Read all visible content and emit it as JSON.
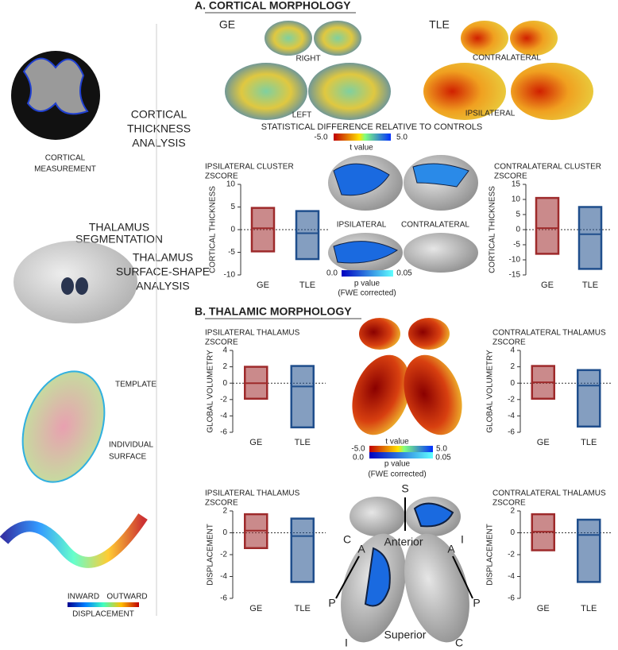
{
  "left_panel": {
    "cortical_measurement": [
      "CORTICAL",
      "MEASUREMENT"
    ],
    "cortical_thickness_analysis": [
      "CORTICAL",
      "THICKNESS",
      "ANALYSIS"
    ],
    "thalamus_segmentation": [
      "THALAMUS",
      "SEGMENTATION"
    ],
    "surface_shape_analysis": [
      "THALAMUS",
      "SURFACE-SHAPE",
      "ANALYSIS"
    ],
    "template": "TEMPLATE",
    "individual_surface": [
      "INDIVIDUAL",
      "SURFACE"
    ],
    "inward": "INWARD",
    "outward": "OUTWARD",
    "displacement": "DISPLACEMENT"
  },
  "panel_a": {
    "title": "A. CORTICAL MORPHOLOGY",
    "ge": "GE",
    "tle": "TLE",
    "right": "RIGHT",
    "left": "LEFT",
    "contralateral": "CONTRALATERAL",
    "ipsilateral": "IPSILATERAL",
    "statistical_difference": "STATISTICAL DIFFERENCE RELATIVE TO CONTROLS",
    "t_min": "-5.0",
    "t_max": "5.0",
    "t_label": "t value",
    "cluster_ipsilateral": "IPSILATERAL",
    "cluster_contralateral": "CONTRALATERAL",
    "p_min": "0.0",
    "p_max": "0.05",
    "p_label": "p value",
    "p_note": "(FWE corrected)"
  },
  "panel_b": {
    "title": "B. THALAMIC MORPHOLOGY",
    "t_label": "t value",
    "t_min": "-5.0",
    "t_max": "5.0",
    "p_min": "0.0",
    "p_max": "0.05",
    "p_label": "p value",
    "p_note": "(FWE corrected)",
    "orientation": {
      "s": "S",
      "anterior": "Anterior",
      "c_top": "C",
      "i_top": "I",
      "a_left": "A",
      "a_right": "A",
      "p_left": "P",
      "p_right": "P",
      "superior": "Superior",
      "i_bottom": "I",
      "c_bottom": "C"
    }
  },
  "chart_data": [
    {
      "type": "box",
      "title": "IPSILATERAL CLUSTER",
      "subtitle": "ZSCORE",
      "ylabel": "CORTICAL THICKNESS",
      "categories": [
        "GE",
        "TLE"
      ],
      "min": [
        -4.8,
        -6.5
      ],
      "max": [
        4.8,
        4.1
      ],
      "median": [
        0.3,
        -0.8
      ],
      "colors": [
        "#9e2a2b",
        "#1f4e8c"
      ],
      "ylim": [
        -10,
        10
      ],
      "yticks": [
        -10,
        -5,
        0,
        5,
        10
      ],
      "zero_line": true
    },
    {
      "type": "box",
      "title": "CONTRALATERAL CLUSTER",
      "subtitle": "ZSCORE",
      "ylabel": "CORTICAL THICKNESS",
      "categories": [
        "GE",
        "TLE"
      ],
      "min": [
        -8,
        -13
      ],
      "max": [
        10.5,
        7.5
      ],
      "median": [
        0.5,
        -1.5
      ],
      "colors": [
        "#9e2a2b",
        "#1f4e8c"
      ],
      "ylim": [
        -15,
        15
      ],
      "yticks": [
        -15,
        -10,
        -5,
        0,
        5,
        10,
        15
      ],
      "zero_line": true
    },
    {
      "type": "box",
      "title": "IPSILATERAL THALAMUS",
      "subtitle": "ZSCORE",
      "ylabel": "GLOBAL VOLUMETRY",
      "categories": [
        "GE",
        "TLE"
      ],
      "min": [
        -1.9,
        -5.4
      ],
      "max": [
        2,
        2.1
      ],
      "median": [
        0,
        -0.4
      ],
      "colors": [
        "#9e2a2b",
        "#1f4e8c"
      ],
      "ylim": [
        -6,
        4
      ],
      "yticks": [
        -6,
        -4,
        -2,
        0,
        2,
        4
      ],
      "zero_line": true
    },
    {
      "type": "box",
      "title": "CONTRALATERAL THALAMUS",
      "subtitle": "ZSCORE",
      "ylabel": "GLOBAL VOLUMETRY",
      "categories": [
        "GE",
        "TLE"
      ],
      "min": [
        -1.9,
        -5.3
      ],
      "max": [
        2.1,
        1.6
      ],
      "median": [
        0.1,
        -0.3
      ],
      "colors": [
        "#9e2a2b",
        "#1f4e8c"
      ],
      "ylim": [
        -6,
        4
      ],
      "yticks": [
        -6,
        -4,
        -2,
        0,
        2,
        4
      ],
      "zero_line": true
    },
    {
      "type": "box",
      "title": "IPSILATERAL THALAMUS",
      "subtitle": "ZSCORE",
      "ylabel": "DISPLACEMENT",
      "categories": [
        "GE",
        "TLE"
      ],
      "min": [
        -1.4,
        -4.5
      ],
      "max": [
        1.7,
        1.3
      ],
      "median": [
        0.2,
        -0.3
      ],
      "colors": [
        "#9e2a2b",
        "#1f4e8c"
      ],
      "ylim": [
        -6,
        2
      ],
      "yticks": [
        -6,
        -4,
        -2,
        0,
        2
      ],
      "zero_line": true
    },
    {
      "type": "box",
      "title": "CONTRALATERAL THALAMUS",
      "subtitle": "ZSCORE",
      "ylabel": "DISPLACEMENT",
      "categories": [
        "GE",
        "TLE"
      ],
      "min": [
        -1.6,
        -4.5
      ],
      "max": [
        1.7,
        1.2
      ],
      "median": [
        0.1,
        -0.2
      ],
      "colors": [
        "#9e2a2b",
        "#1f4e8c"
      ],
      "ylim": [
        -6,
        2
      ],
      "yticks": [
        -6,
        -4,
        -2,
        0,
        2
      ],
      "zero_line": true
    }
  ]
}
